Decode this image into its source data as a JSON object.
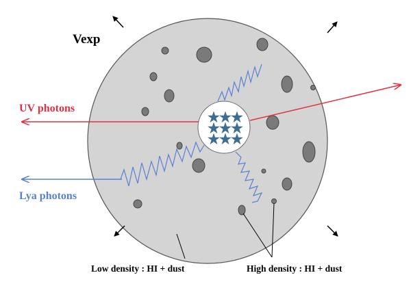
{
  "labels": {
    "expansion": "Vexp",
    "uv": "UV photons",
    "lya": "Lya photons",
    "low_density": "Low density : HI + dust",
    "high_density": "High density : HI + dust"
  }
}
